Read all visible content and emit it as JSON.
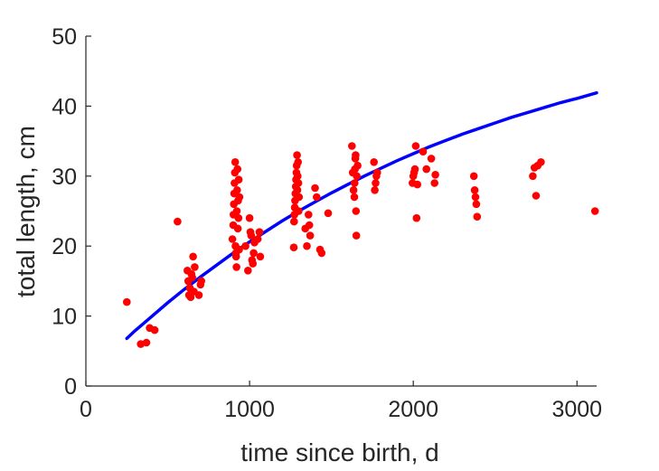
{
  "chart_data": {
    "type": "scatter",
    "title": "",
    "xlabel": "time since birth, d",
    "ylabel": "total length, cm",
    "xlim": [
      0,
      3120
    ],
    "ylim": [
      0,
      50
    ],
    "xticks": [
      0,
      1000,
      2000,
      3000
    ],
    "yticks": [
      0,
      10,
      20,
      30,
      40,
      50
    ],
    "xtick_labels": [
      "0",
      "1000",
      "2000",
      "3000"
    ],
    "ytick_labels": [
      "0",
      "10",
      "20",
      "30",
      "40",
      "50"
    ],
    "grid": false,
    "legend": "none",
    "series": [
      {
        "kind": "scatter",
        "color": "#ff0000",
        "points": [
          [
            250,
            12.0
          ],
          [
            335,
            6.0
          ],
          [
            370,
            6.2
          ],
          [
            390,
            8.3
          ],
          [
            420,
            8.0
          ],
          [
            560,
            23.5
          ],
          [
            620,
            16.5
          ],
          [
            625,
            15.0
          ],
          [
            630,
            13.0
          ],
          [
            635,
            14.0
          ],
          [
            640,
            12.7
          ],
          [
            645,
            16.0
          ],
          [
            650,
            15.5
          ],
          [
            655,
            18.5
          ],
          [
            660,
            13.5
          ],
          [
            665,
            17.0
          ],
          [
            690,
            13.0
          ],
          [
            700,
            14.5
          ],
          [
            705,
            15.0
          ],
          [
            895,
            21.0
          ],
          [
            900,
            23.0
          ],
          [
            902,
            24.5
          ],
          [
            904,
            26.0
          ],
          [
            906,
            27.5
          ],
          [
            908,
            29.0
          ],
          [
            910,
            30.5
          ],
          [
            912,
            32.0
          ],
          [
            914,
            20.0
          ],
          [
            916,
            19.0
          ],
          [
            918,
            18.5
          ],
          [
            920,
            17.0
          ],
          [
            922,
            25.0
          ],
          [
            924,
            28.0
          ],
          [
            926,
            31.0
          ],
          [
            928,
            22.5
          ],
          [
            930,
            26.5
          ],
          [
            932,
            24.0
          ],
          [
            934,
            29.5
          ],
          [
            936,
            19.5
          ],
          [
            938,
            27.0
          ],
          [
            975,
            20.0
          ],
          [
            990,
            16.5
          ],
          [
            1000,
            24.0
          ],
          [
            1005,
            22.0
          ],
          [
            1010,
            21.5
          ],
          [
            1015,
            18.0
          ],
          [
            1020,
            17.5
          ],
          [
            1025,
            19.0
          ],
          [
            1030,
            20.5
          ],
          [
            1050,
            21.0
          ],
          [
            1060,
            22.0
          ],
          [
            1065,
            18.5
          ],
          [
            1270,
            19.8
          ],
          [
            1272,
            23.5
          ],
          [
            1274,
            24.5
          ],
          [
            1276,
            25.5
          ],
          [
            1278,
            26.5
          ],
          [
            1280,
            27.5
          ],
          [
            1282,
            28.5
          ],
          [
            1284,
            29.5
          ],
          [
            1286,
            30.5
          ],
          [
            1288,
            31.5
          ],
          [
            1290,
            33.0
          ],
          [
            1292,
            28.0
          ],
          [
            1294,
            30.0
          ],
          [
            1296,
            32.0
          ],
          [
            1298,
            29.0
          ],
          [
            1300,
            25.0
          ],
          [
            1302,
            27.0
          ],
          [
            1340,
            22.5
          ],
          [
            1350,
            20.0
          ],
          [
            1360,
            24.5
          ],
          [
            1365,
            23.0
          ],
          [
            1370,
            21.5
          ],
          [
            1400,
            28.3
          ],
          [
            1410,
            27.0
          ],
          [
            1430,
            19.5
          ],
          [
            1440,
            19.0
          ],
          [
            1480,
            24.7
          ],
          [
            1625,
            34.3
          ],
          [
            1630,
            30.5
          ],
          [
            1635,
            28.0
          ],
          [
            1640,
            27.0
          ],
          [
            1642,
            29.0
          ],
          [
            1644,
            31.0
          ],
          [
            1646,
            32.5
          ],
          [
            1648,
            33.0
          ],
          [
            1650,
            25.0
          ],
          [
            1652,
            21.5
          ],
          [
            1655,
            30.0
          ],
          [
            1660,
            31.5
          ],
          [
            1760,
            32.0
          ],
          [
            1765,
            28.0
          ],
          [
            1770,
            29.0
          ],
          [
            1775,
            30.0
          ],
          [
            1780,
            30.5
          ],
          [
            1995,
            29.0
          ],
          [
            2000,
            30.0
          ],
          [
            2005,
            30.5
          ],
          [
            2010,
            31.0
          ],
          [
            2015,
            34.3
          ],
          [
            2020,
            24.0
          ],
          [
            2025,
            28.8
          ],
          [
            2060,
            33.5
          ],
          [
            2080,
            31.0
          ],
          [
            2110,
            32.5
          ],
          [
            2130,
            29.0
          ],
          [
            2135,
            30.2
          ],
          [
            2370,
            30.0
          ],
          [
            2375,
            28.0
          ],
          [
            2380,
            27.0
          ],
          [
            2385,
            26.0
          ],
          [
            2390,
            24.2
          ],
          [
            2730,
            30.0
          ],
          [
            2740,
            31.2
          ],
          [
            2750,
            27.2
          ],
          [
            2760,
            31.5
          ],
          [
            2780,
            32.0
          ],
          [
            3110,
            25.0
          ]
        ]
      },
      {
        "kind": "line",
        "color": "#0000ff",
        "points": [
          [
            250,
            6.8
          ],
          [
            300,
            7.9
          ],
          [
            400,
            9.9
          ],
          [
            500,
            11.9
          ],
          [
            600,
            13.8
          ],
          [
            700,
            15.6
          ],
          [
            800,
            17.3
          ],
          [
            900,
            19.0
          ],
          [
            1000,
            20.6
          ],
          [
            1100,
            22.1
          ],
          [
            1200,
            23.6
          ],
          [
            1300,
            25.0
          ],
          [
            1400,
            26.3
          ],
          [
            1500,
            27.6
          ],
          [
            1600,
            28.8
          ],
          [
            1700,
            30.0
          ],
          [
            1800,
            31.1
          ],
          [
            1900,
            32.2
          ],
          [
            2000,
            33.2
          ],
          [
            2100,
            34.2
          ],
          [
            2200,
            35.1
          ],
          [
            2300,
            36.0
          ],
          [
            2400,
            36.8
          ],
          [
            2500,
            37.6
          ],
          [
            2600,
            38.4
          ],
          [
            2700,
            39.1
          ],
          [
            2800,
            39.8
          ],
          [
            2900,
            40.5
          ],
          [
            3000,
            41.1
          ],
          [
            3120,
            41.9
          ]
        ]
      }
    ]
  }
}
